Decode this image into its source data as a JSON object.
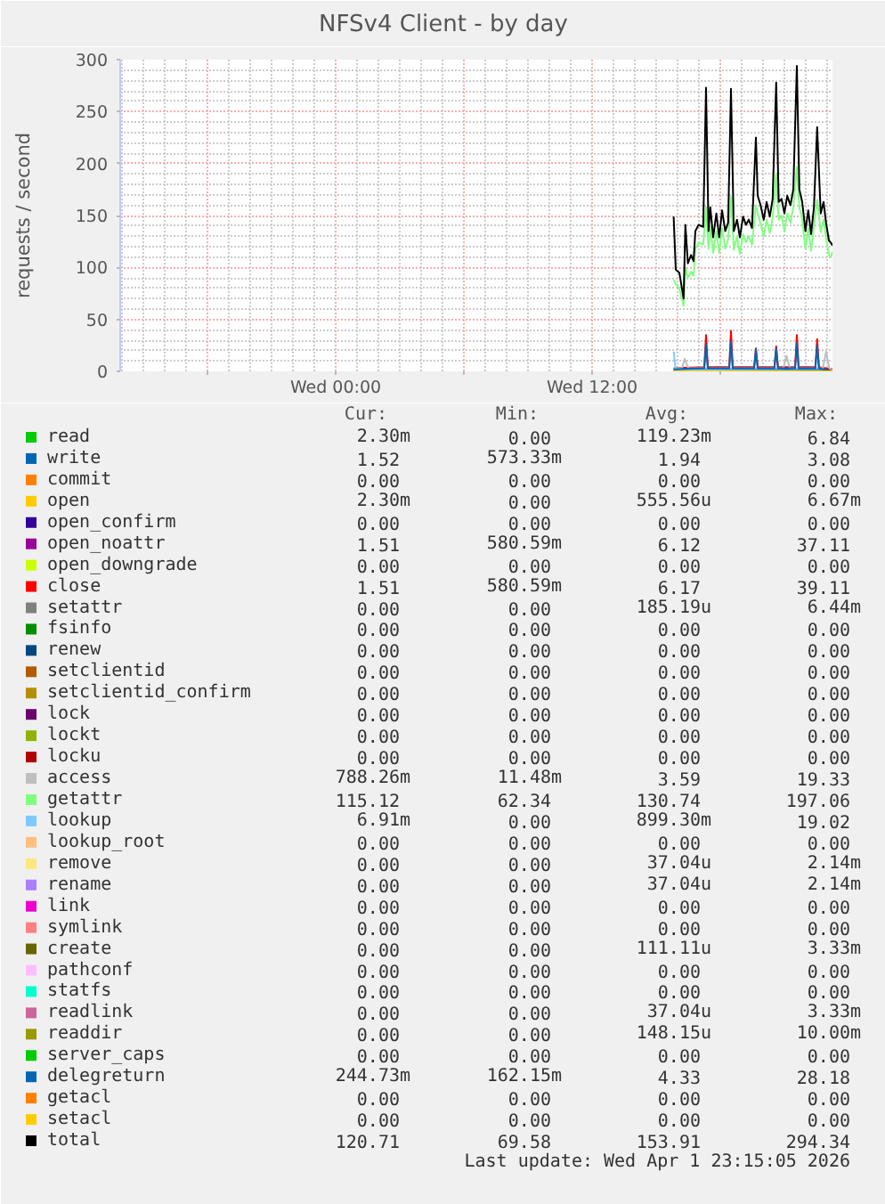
{
  "chart_data": {
    "type": "line",
    "title": "NFSv4 Client - by day",
    "ylabel": "requests / second",
    "xlim": [
      "2026-03-31T13:55",
      "2026-04-01T23:15"
    ],
    "xticks": [
      {
        "value": "2026-03-31T18:00",
        "label": null
      },
      {
        "value": "2026-04-01T00:00",
        "label": "Wed 00:00"
      },
      {
        "value": "2026-04-01T06:00",
        "label": null
      },
      {
        "value": "2026-04-01T12:00",
        "label": "Wed 12:00"
      },
      {
        "value": "2026-04-01T18:00",
        "label": null
      }
    ],
    "ylim": [
      0,
      300
    ],
    "yticks": [
      0,
      50,
      100,
      150,
      200,
      250,
      300
    ],
    "grid": true,
    "legend": "bottom",
    "x": [
      "2026-04-01T15:49",
      "2026-04-01T15:55",
      "2026-04-01T16:05",
      "2026-04-01T16:17",
      "2026-04-01T16:22",
      "2026-04-01T16:29",
      "2026-04-01T16:38",
      "2026-04-01T16:45",
      "2026-04-01T16:50",
      "2026-04-01T16:59",
      "2026-04-01T17:12",
      "2026-04-01T17:20",
      "2026-04-01T17:27",
      "2026-04-01T17:32",
      "2026-04-01T17:40",
      "2026-04-01T17:49",
      "2026-04-01T17:57",
      "2026-04-01T18:05",
      "2026-04-01T18:14",
      "2026-04-01T18:22",
      "2026-04-01T18:30",
      "2026-04-01T18:38",
      "2026-04-01T18:47",
      "2026-04-01T18:55",
      "2026-04-01T19:04",
      "2026-04-01T19:12",
      "2026-04-01T19:20",
      "2026-04-01T19:29",
      "2026-04-01T19:40",
      "2026-04-01T19:45",
      "2026-04-01T19:53",
      "2026-04-01T20:02",
      "2026-04-01T20:10",
      "2026-04-01T20:19",
      "2026-04-01T20:27",
      "2026-04-01T20:37",
      "2026-04-01T20:44",
      "2026-04-01T20:52",
      "2026-04-01T21:00",
      "2026-04-01T21:08",
      "2026-04-01T21:17",
      "2026-04-01T21:25",
      "2026-04-01T21:35",
      "2026-04-01T21:42",
      "2026-04-01T21:50",
      "2026-04-01T21:59",
      "2026-04-01T22:07",
      "2026-04-01T22:15",
      "2026-04-01T22:23",
      "2026-04-01T22:32",
      "2026-04-01T22:42",
      "2026-04-01T22:50",
      "2026-04-01T22:57",
      "2026-04-01T23:05",
      "2026-04-01T23:10",
      "2026-04-01T23:15"
    ],
    "series": [
      {
        "name": "read",
        "color": "#00cc00",
        "values": [
          null,
          null,
          null,
          null,
          null,
          null,
          null,
          null,
          null,
          null,
          null,
          null,
          null,
          null,
          null,
          null,
          null,
          null,
          null,
          null,
          null,
          null,
          null,
          null,
          null,
          null,
          null,
          null,
          null,
          null,
          null,
          null,
          null,
          null,
          null,
          null,
          null,
          null,
          null,
          null,
          null,
          null,
          null,
          null,
          null,
          null,
          null,
          null,
          null,
          null,
          null,
          null,
          null,
          null,
          null,
          null
        ]
      },
      {
        "name": "write",
        "color": "#0066b3",
        "x": [
          "2026-04-01T15:49",
          "2026-04-01T23:15"
        ],
        "values": [
          2,
          2
        ]
      },
      {
        "name": "commit",
        "color": "#ff8000",
        "values": [
          null,
          null,
          null,
          null,
          null,
          null,
          null,
          null,
          null,
          null,
          null,
          null,
          null,
          null,
          null,
          null,
          null,
          null,
          null,
          null,
          null,
          null,
          null,
          null,
          null,
          null,
          null,
          null,
          null,
          null,
          null,
          null,
          null,
          null,
          null,
          null,
          null,
          null,
          null,
          null,
          null,
          null,
          null,
          null,
          null,
          null,
          null,
          null,
          null,
          null,
          null,
          null,
          null,
          null,
          null,
          null
        ]
      },
      {
        "name": "open",
        "color": "#ffcc00",
        "values": [
          null,
          null,
          null,
          null,
          null,
          null,
          null,
          null,
          null,
          null,
          null,
          null,
          null,
          null,
          null,
          null,
          null,
          null,
          null,
          null,
          null,
          null,
          null,
          null,
          null,
          null,
          null,
          null,
          null,
          null,
          null,
          null,
          null,
          null,
          null,
          null,
          null,
          null,
          null,
          null,
          null,
          null,
          null,
          null,
          null,
          null,
          null,
          null,
          null,
          null,
          null,
          null,
          null,
          null,
          null,
          null
        ]
      },
      {
        "name": "open_confirm",
        "color": "#330099",
        "values": [
          null,
          null,
          null,
          null,
          null,
          null,
          null,
          null,
          null,
          null,
          null,
          null,
          null,
          null,
          null,
          null,
          null,
          null,
          null,
          null,
          null,
          null,
          null,
          null,
          null,
          null,
          null,
          null,
          null,
          null,
          null,
          null,
          null,
          null,
          null,
          null,
          null,
          null,
          null,
          null,
          null,
          null,
          null,
          null,
          null,
          null,
          null,
          null,
          null,
          null,
          null,
          null,
          null,
          null,
          null,
          null
        ]
      },
      {
        "name": "open_noattr",
        "color": "#990099",
        "values": [
          null,
          null,
          null,
          null,
          null,
          null,
          null,
          null,
          null,
          null,
          null,
          null,
          null,
          null,
          null,
          null,
          null,
          null,
          null,
          null,
          null,
          null,
          null,
          null,
          null,
          null,
          null,
          null,
          null,
          null,
          null,
          null,
          null,
          null,
          null,
          null,
          null,
          null,
          null,
          null,
          null,
          null,
          null,
          null,
          null,
          null,
          null,
          null,
          null,
          null,
          null,
          null,
          null,
          null,
          null,
          null
        ]
      },
      {
        "name": "open_downgrade",
        "color": "#ccff00",
        "values": [
          null,
          null,
          null,
          null,
          null,
          null,
          null,
          null,
          null,
          null,
          null,
          null,
          null,
          null,
          null,
          null,
          null,
          null,
          null,
          null,
          null,
          null,
          null,
          null,
          null,
          null,
          null,
          null,
          null,
          null,
          null,
          null,
          null,
          null,
          null,
          null,
          null,
          null,
          null,
          null,
          null,
          null,
          null,
          null,
          null,
          null,
          null,
          null,
          null,
          null,
          null,
          null,
          null,
          null,
          null,
          null
        ]
      },
      {
        "name": "close",
        "color": "#ff0000",
        "x": [
          "2026-04-01T15:49",
          "2026-04-01T17:15",
          "2026-04-01T17:20",
          "2026-04-01T17:25",
          "2026-04-01T18:25",
          "2026-04-01T18:30",
          "2026-04-01T18:35",
          "2026-04-01T19:35",
          "2026-04-01T19:40",
          "2026-04-01T19:45",
          "2026-04-01T20:32",
          "2026-04-01T20:37",
          "2026-04-01T20:42",
          "2026-04-01T21:30",
          "2026-04-01T21:35",
          "2026-04-01T21:40",
          "2026-04-01T22:27",
          "2026-04-01T22:32",
          "2026-04-01T22:37",
          "2026-04-01T23:15"
        ],
        "values": [
          3,
          4,
          35,
          4,
          4,
          39,
          4,
          4,
          22,
          4,
          4,
          24,
          4,
          4,
          35,
          4,
          4,
          31,
          4,
          2
        ]
      },
      {
        "name": "setattr",
        "color": "#808080",
        "values": [
          null,
          null,
          null,
          null,
          null,
          null,
          null,
          null,
          null,
          null,
          null,
          null,
          null,
          null,
          null,
          null,
          null,
          null,
          null,
          null,
          null,
          null,
          null,
          null,
          null,
          null,
          null,
          null,
          null,
          null,
          null,
          null,
          null,
          null,
          null,
          null,
          null,
          null,
          null,
          null,
          null,
          null,
          null,
          null,
          null,
          null,
          null,
          null,
          null,
          null,
          null,
          null,
          null,
          null,
          null,
          null
        ]
      },
      {
        "name": "fsinfo",
        "color": "#008f00",
        "values": [
          null,
          null,
          null,
          null,
          null,
          null,
          null,
          null,
          null,
          null,
          null,
          null,
          null,
          null,
          null,
          null,
          null,
          null,
          null,
          null,
          null,
          null,
          null,
          null,
          null,
          null,
          null,
          null,
          null,
          null,
          null,
          null,
          null,
          null,
          null,
          null,
          null,
          null,
          null,
          null,
          null,
          null,
          null,
          null,
          null,
          null,
          null,
          null,
          null,
          null,
          null,
          null,
          null,
          null,
          null,
          null
        ]
      },
      {
        "name": "renew",
        "color": "#00487d",
        "values": [
          null,
          null,
          null,
          null,
          null,
          null,
          null,
          null,
          null,
          null,
          null,
          null,
          null,
          null,
          null,
          null,
          null,
          null,
          null,
          null,
          null,
          null,
          null,
          null,
          null,
          null,
          null,
          null,
          null,
          null,
          null,
          null,
          null,
          null,
          null,
          null,
          null,
          null,
          null,
          null,
          null,
          null,
          null,
          null,
          null,
          null,
          null,
          null,
          null,
          null,
          null,
          null,
          null,
          null,
          null,
          null
        ]
      },
      {
        "name": "setclientid",
        "color": "#b35a00",
        "values": [
          null,
          null,
          null,
          null,
          null,
          null,
          null,
          null,
          null,
          null,
          null,
          null,
          null,
          null,
          null,
          null,
          null,
          null,
          null,
          null,
          null,
          null,
          null,
          null,
          null,
          null,
          null,
          null,
          null,
          null,
          null,
          null,
          null,
          null,
          null,
          null,
          null,
          null,
          null,
          null,
          null,
          null,
          null,
          null,
          null,
          null,
          null,
          null,
          null,
          null,
          null,
          null,
          null,
          null,
          null,
          null
        ]
      },
      {
        "name": "setclientid_confirm",
        "color": "#b38f00",
        "values": [
          null,
          null,
          null,
          null,
          null,
          null,
          null,
          null,
          null,
          null,
          null,
          null,
          null,
          null,
          null,
          null,
          null,
          null,
          null,
          null,
          null,
          null,
          null,
          null,
          null,
          null,
          null,
          null,
          null,
          null,
          null,
          null,
          null,
          null,
          null,
          null,
          null,
          null,
          null,
          null,
          null,
          null,
          null,
          null,
          null,
          null,
          null,
          null,
          null,
          null,
          null,
          null,
          null,
          null,
          null,
          null
        ]
      },
      {
        "name": "lock",
        "color": "#6b006b",
        "values": [
          null,
          null,
          null,
          null,
          null,
          null,
          null,
          null,
          null,
          null,
          null,
          null,
          null,
          null,
          null,
          null,
          null,
          null,
          null,
          null,
          null,
          null,
          null,
          null,
          null,
          null,
          null,
          null,
          null,
          null,
          null,
          null,
          null,
          null,
          null,
          null,
          null,
          null,
          null,
          null,
          null,
          null,
          null,
          null,
          null,
          null,
          null,
          null,
          null,
          null,
          null,
          null,
          null,
          null,
          null,
          null
        ]
      },
      {
        "name": "lockt",
        "color": "#8fb300",
        "values": [
          null,
          null,
          null,
          null,
          null,
          null,
          null,
          null,
          null,
          null,
          null,
          null,
          null,
          null,
          null,
          null,
          null,
          null,
          null,
          null,
          null,
          null,
          null,
          null,
          null,
          null,
          null,
          null,
          null,
          null,
          null,
          null,
          null,
          null,
          null,
          null,
          null,
          null,
          null,
          null,
          null,
          null,
          null,
          null,
          null,
          null,
          null,
          null,
          null,
          null,
          null,
          null,
          null,
          null,
          null,
          null
        ]
      },
      {
        "name": "locku",
        "color": "#b30000",
        "values": [
          null,
          null,
          null,
          null,
          null,
          null,
          null,
          null,
          null,
          null,
          null,
          null,
          null,
          null,
          null,
          null,
          null,
          null,
          null,
          null,
          null,
          null,
          null,
          null,
          null,
          null,
          null,
          null,
          null,
          null,
          null,
          null,
          null,
          null,
          null,
          null,
          null,
          null,
          null,
          null,
          null,
          null,
          null,
          null,
          null,
          null,
          null,
          null,
          null,
          null,
          null,
          null,
          null,
          null,
          null,
          null
        ]
      },
      {
        "name": "access",
        "color": "#bebebe",
        "x": [
          "2026-04-01T15:49",
          "2026-04-01T16:12",
          "2026-04-01T16:20",
          "2026-04-01T16:30",
          "2026-04-01T20:57",
          "2026-04-01T21:06",
          "2026-04-01T21:15",
          "2026-04-01T22:48",
          "2026-04-01T22:57",
          "2026-04-01T23:06",
          "2026-04-01T23:15"
        ],
        "values": [
          3,
          3,
          12,
          3,
          3,
          15,
          3,
          3,
          19,
          3,
          1
        ]
      },
      {
        "name": "getattr",
        "color": "#80ff80",
        "values": [
          88,
          84,
          80,
          63,
          100,
          90,
          96,
          92,
          118,
          124,
          122,
          158,
          118,
          140,
          114,
          135,
          114,
          138,
          118,
          127,
          168,
          117,
          130,
          113,
          132,
          124,
          130,
          122,
          160,
          152,
          142,
          130,
          146,
          133,
          148,
          190,
          146,
          150,
          135,
          152,
          143,
          158,
          197,
          158,
          146,
          118,
          138,
          116,
          140,
          165,
          134,
          146,
          128,
          112,
          110,
          115
        ]
      },
      {
        "name": "lookup",
        "color": "#80c9ff",
        "x": [
          "2026-04-01T15:49",
          "2026-04-01T15:55",
          "2026-04-01T23:15"
        ],
        "values": [
          19,
          1,
          0
        ]
      },
      {
        "name": "lookup_root",
        "color": "#ffc080",
        "values": [
          null,
          null,
          null,
          null,
          null,
          null,
          null,
          null,
          null,
          null,
          null,
          null,
          null,
          null,
          null,
          null,
          null,
          null,
          null,
          null,
          null,
          null,
          null,
          null,
          null,
          null,
          null,
          null,
          null,
          null,
          null,
          null,
          null,
          null,
          null,
          null,
          null,
          null,
          null,
          null,
          null,
          null,
          null,
          null,
          null,
          null,
          null,
          null,
          null,
          null,
          null,
          null,
          null,
          null,
          null,
          null
        ]
      },
      {
        "name": "remove",
        "color": "#ffe680",
        "values": [
          null,
          null,
          null,
          null,
          null,
          null,
          null,
          null,
          null,
          null,
          null,
          null,
          null,
          null,
          null,
          null,
          null,
          null,
          null,
          null,
          null,
          null,
          null,
          null,
          null,
          null,
          null,
          null,
          null,
          null,
          null,
          null,
          null,
          null,
          null,
          null,
          null,
          null,
          null,
          null,
          null,
          null,
          null,
          null,
          null,
          null,
          null,
          null,
          null,
          null,
          null,
          null,
          null,
          null,
          null,
          null
        ]
      },
      {
        "name": "rename",
        "color": "#aa80ff",
        "values": [
          null,
          null,
          null,
          null,
          null,
          null,
          null,
          null,
          null,
          null,
          null,
          null,
          null,
          null,
          null,
          null,
          null,
          null,
          null,
          null,
          null,
          null,
          null,
          null,
          null,
          null,
          null,
          null,
          null,
          null,
          null,
          null,
          null,
          null,
          null,
          null,
          null,
          null,
          null,
          null,
          null,
          null,
          null,
          null,
          null,
          null,
          null,
          null,
          null,
          null,
          null,
          null,
          null,
          null,
          null,
          null
        ]
      },
      {
        "name": "link",
        "color": "#ee00cc",
        "values": [
          null,
          null,
          null,
          null,
          null,
          null,
          null,
          null,
          null,
          null,
          null,
          null,
          null,
          null,
          null,
          null,
          null,
          null,
          null,
          null,
          null,
          null,
          null,
          null,
          null,
          null,
          null,
          null,
          null,
          null,
          null,
          null,
          null,
          null,
          null,
          null,
          null,
          null,
          null,
          null,
          null,
          null,
          null,
          null,
          null,
          null,
          null,
          null,
          null,
          null,
          null,
          null,
          null,
          null,
          null,
          null
        ]
      },
      {
        "name": "symlink",
        "color": "#ff8080",
        "values": [
          null,
          null,
          null,
          null,
          null,
          null,
          null,
          null,
          null,
          null,
          null,
          null,
          null,
          null,
          null,
          null,
          null,
          null,
          null,
          null,
          null,
          null,
          null,
          null,
          null,
          null,
          null,
          null,
          null,
          null,
          null,
          null,
          null,
          null,
          null,
          null,
          null,
          null,
          null,
          null,
          null,
          null,
          null,
          null,
          null,
          null,
          null,
          null,
          null,
          null,
          null,
          null,
          null,
          null,
          null,
          null
        ]
      },
      {
        "name": "create",
        "color": "#666600",
        "values": [
          null,
          null,
          null,
          null,
          null,
          null,
          null,
          null,
          null,
          null,
          null,
          null,
          null,
          null,
          null,
          null,
          null,
          null,
          null,
          null,
          null,
          null,
          null,
          null,
          null,
          null,
          null,
          null,
          null,
          null,
          null,
          null,
          null,
          null,
          null,
          null,
          null,
          null,
          null,
          null,
          null,
          null,
          null,
          null,
          null,
          null,
          null,
          null,
          null,
          null,
          null,
          null,
          null,
          null,
          null,
          null
        ]
      },
      {
        "name": "pathconf",
        "color": "#ffbfff",
        "values": [
          null,
          null,
          null,
          null,
          null,
          null,
          null,
          null,
          null,
          null,
          null,
          null,
          null,
          null,
          null,
          null,
          null,
          null,
          null,
          null,
          null,
          null,
          null,
          null,
          null,
          null,
          null,
          null,
          null,
          null,
          null,
          null,
          null,
          null,
          null,
          null,
          null,
          null,
          null,
          null,
          null,
          null,
          null,
          null,
          null,
          null,
          null,
          null,
          null,
          null,
          null,
          null,
          null,
          null,
          null,
          null
        ]
      },
      {
        "name": "statfs",
        "color": "#00ffcc",
        "values": [
          null,
          null,
          null,
          null,
          null,
          null,
          null,
          null,
          null,
          null,
          null,
          null,
          null,
          null,
          null,
          null,
          null,
          null,
          null,
          null,
          null,
          null,
          null,
          null,
          null,
          null,
          null,
          null,
          null,
          null,
          null,
          null,
          null,
          null,
          null,
          null,
          null,
          null,
          null,
          null,
          null,
          null,
          null,
          null,
          null,
          null,
          null,
          null,
          null,
          null,
          null,
          null,
          null,
          null,
          null,
          null
        ]
      },
      {
        "name": "readlink",
        "color": "#cc6699",
        "values": [
          null,
          null,
          null,
          null,
          null,
          null,
          null,
          null,
          null,
          null,
          null,
          null,
          null,
          null,
          null,
          null,
          null,
          null,
          null,
          null,
          null,
          null,
          null,
          null,
          null,
          null,
          null,
          null,
          null,
          null,
          null,
          null,
          null,
          null,
          null,
          null,
          null,
          null,
          null,
          null,
          null,
          null,
          null,
          null,
          null,
          null,
          null,
          null,
          null,
          null,
          null,
          null,
          null,
          null,
          null,
          null
        ]
      },
      {
        "name": "readdir",
        "color": "#999900",
        "values": [
          null,
          null,
          null,
          null,
          null,
          null,
          null,
          null,
          null,
          null,
          null,
          null,
          null,
          null,
          null,
          null,
          null,
          null,
          null,
          null,
          null,
          null,
          null,
          null,
          null,
          null,
          null,
          null,
          null,
          null,
          null,
          null,
          null,
          null,
          null,
          null,
          null,
          null,
          null,
          null,
          null,
          null,
          null,
          null,
          null,
          null,
          null,
          null,
          null,
          null,
          null,
          null,
          null,
          null,
          null,
          null
        ]
      },
      {
        "name": "server_caps",
        "color": "#00cc00",
        "values": [
          null,
          null,
          null,
          null,
          null,
          null,
          null,
          null,
          null,
          null,
          null,
          null,
          null,
          null,
          null,
          null,
          null,
          null,
          null,
          null,
          null,
          null,
          null,
          null,
          null,
          null,
          null,
          null,
          null,
          null,
          null,
          null,
          null,
          null,
          null,
          null,
          null,
          null,
          null,
          null,
          null,
          null,
          null,
          null,
          null,
          null,
          null,
          null,
          null,
          null,
          null,
          null,
          null,
          null,
          null,
          null
        ]
      },
      {
        "name": "delegreturn",
        "color": "#0066b3",
        "x": [
          "2026-04-01T15:49",
          "2026-04-01T17:15",
          "2026-04-01T17:20",
          "2026-04-01T17:25",
          "2026-04-01T18:25",
          "2026-04-01T18:30",
          "2026-04-01T18:35",
          "2026-04-01T19:35",
          "2026-04-01T19:40",
          "2026-04-01T19:45",
          "2026-04-01T20:32",
          "2026-04-01T20:37",
          "2026-04-01T20:42",
          "2026-04-01T21:30",
          "2026-04-01T21:35",
          "2026-04-01T21:40",
          "2026-04-01T22:27",
          "2026-04-01T22:32",
          "2026-04-01T22:37",
          "2026-04-01T23:15"
        ],
        "values": [
          2,
          3,
          26,
          3,
          3,
          28,
          3,
          3,
          21,
          3,
          3,
          22,
          3,
          3,
          27,
          3,
          3,
          25,
          3,
          0
        ]
      },
      {
        "name": "getacl",
        "color": "#ff8000",
        "values": [
          null,
          null,
          null,
          null,
          null,
          null,
          null,
          null,
          null,
          null,
          null,
          null,
          null,
          null,
          null,
          null,
          null,
          null,
          null,
          null,
          null,
          null,
          null,
          null,
          null,
          null,
          null,
          null,
          null,
          null,
          null,
          null,
          null,
          null,
          null,
          null,
          null,
          null,
          null,
          null,
          null,
          null,
          null,
          null,
          null,
          null,
          null,
          null,
          null,
          null,
          null,
          null,
          null,
          null,
          null,
          null
        ]
      },
      {
        "name": "setacl",
        "color": "#ffcc00",
        "x": [
          "2026-04-01T15:49",
          "2026-04-01T23:15"
        ],
        "values": [
          0,
          0
        ]
      },
      {
        "name": "total",
        "color": "#000000",
        "values": [
          149,
          98,
          95,
          70,
          141,
          104,
          112,
          106,
          135,
          141,
          139,
          273,
          135,
          158,
          129,
          152,
          129,
          155,
          135,
          143,
          272,
          135,
          146,
          129,
          149,
          141,
          146,
          138,
          225,
          169,
          160,
          146,
          163,
          149,
          166,
          278,
          163,
          166,
          152,
          169,
          160,
          175,
          294,
          175,
          163,
          135,
          155,
          132,
          158,
          235,
          152,
          163,
          143,
          126,
          124,
          121
        ]
      }
    ],
    "annotations": [
      "Cur:",
      "Min:",
      "Avg:",
      "Max:",
      "2.30m",
      "0.00",
      "119.23m",
      "6.84",
      "1.52",
      "573.33m",
      "1.94",
      "3.08",
      "0.00",
      "0.00",
      "0.00",
      "0.00",
      "2.30m",
      "0.00",
      "555.56u",
      "6.67m",
      "0.00",
      "0.00",
      "0.00",
      "0.00",
      "1.51",
      "580.59m",
      "6.12",
      "37.11",
      "0.00",
      "0.00",
      "0.00",
      "0.00",
      "1.51",
      "580.59m",
      "6.17",
      "39.11",
      "0.00",
      "0.00",
      "185.19u",
      "6.44m",
      "0.00",
      "0.00",
      "0.00",
      "0.00",
      "0.00",
      "0.00",
      "0.00",
      "0.00",
      "0.00",
      "0.00",
      "0.00",
      "0.00",
      "0.00",
      "0.00",
      "0.00",
      "0.00",
      "0.00",
      "0.00",
      "0.00",
      "0.00",
      "0.00",
      "0.00",
      "0.00",
      "0.00",
      "0.00",
      "0.00",
      "0.00",
      "0.00",
      "788.26m",
      "11.48m",
      "3.59",
      "19.33",
      "115.12",
      "62.34",
      "130.74",
      "197.06",
      "6.91m",
      "0.00",
      "899.30m",
      "19.02",
      "0.00",
      "0.00",
      "0.00",
      "0.00",
      "0.00",
      "0.00",
      "37.04u",
      "2.14m",
      "0.00",
      "0.00",
      "37.04u",
      "2.14m",
      "0.00",
      "0.00",
      "0.00",
      "0.00",
      "0.00",
      "0.00",
      "0.00",
      "0.00",
      "0.00",
      "0.00",
      "111.11u",
      "3.33m",
      "0.00",
      "0.00",
      "0.00",
      "0.00",
      "0.00",
      "0.00",
      "0.00",
      "0.00",
      "0.00",
      "0.00",
      "37.04u",
      "3.33m",
      "0.00",
      "0.00",
      "148.15u",
      "10.00m",
      "0.00",
      "0.00",
      "0.00",
      "0.00",
      "244.73m",
      "162.15m",
      "4.33",
      "28.18",
      "0.00",
      "0.00",
      "0.00",
      "0.00",
      "0.00",
      "0.00",
      "0.00",
      "0.00",
      "120.71",
      "69.58",
      "153.91",
      "294.34",
      "Last update: Wed Apr  1 23:15:05 2026"
    ]
  }
}
